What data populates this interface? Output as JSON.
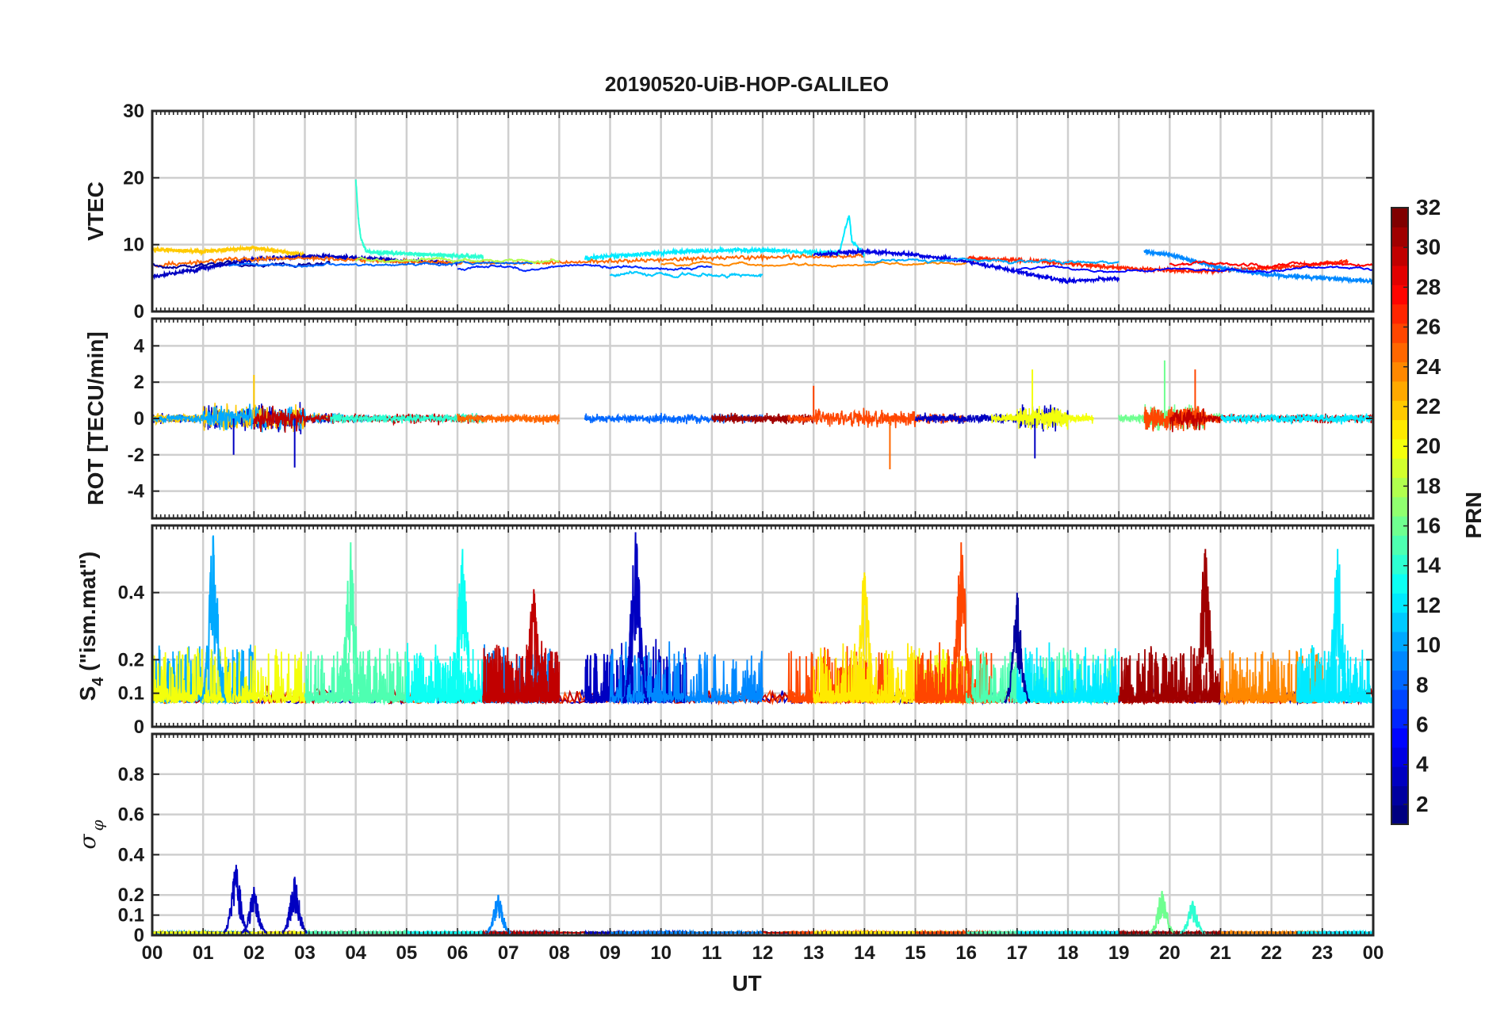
{
  "figure": {
    "title": "20190520-UiB-HOP-GALILEO",
    "xlabel": "UT",
    "x_tick_labels": [
      "00",
      "01",
      "02",
      "03",
      "04",
      "05",
      "06",
      "07",
      "08",
      "09",
      "10",
      "11",
      "12",
      "13",
      "14",
      "15",
      "16",
      "17",
      "18",
      "19",
      "20",
      "21",
      "22",
      "23",
      "00"
    ],
    "colorbar": {
      "label": "PRN",
      "colormap": "jet",
      "range": [
        1,
        32
      ],
      "tick_labels": [
        "2",
        "4",
        "6",
        "8",
        "10",
        "12",
        "14",
        "16",
        "18",
        "20",
        "22",
        "24",
        "26",
        "28",
        "30",
        "32"
      ]
    }
  },
  "chart_data": [
    {
      "type": "line",
      "ylabel": "VTEC",
      "xlim": [
        0,
        24
      ],
      "ylim": [
        0,
        30
      ],
      "y_tick_labels": [
        "0",
        "10",
        "20",
        "30"
      ],
      "y_ticks": [
        0,
        10,
        20,
        30
      ],
      "grid": true,
      "note_series": "one trace per PRN, color-coded by PRN",
      "series": [
        {
          "prn": 22,
          "x": [
            0.0,
            1.0,
            2.0,
            3.0
          ],
          "y": [
            9.3,
            9.0,
            9.5,
            8.5
          ]
        },
        {
          "prn": 3,
          "x": [
            0.0,
            1.0,
            2.0,
            3.2,
            4.5,
            6.0
          ],
          "y": [
            5.2,
            6.5,
            7.8,
            8.3,
            7.8,
            7.2
          ]
        },
        {
          "prn": 25,
          "x": [
            0.0,
            1.5,
            3.0,
            5.0,
            7.0,
            9.0,
            11.0,
            13.0,
            14.0
          ],
          "y": [
            6.8,
            7.8,
            8.0,
            7.4,
            7.2,
            7.5,
            8.0,
            8.2,
            8.3
          ]
        },
        {
          "prn": 14,
          "x": [
            4.0,
            4.05,
            4.1,
            4.2,
            4.5,
            5.5,
            6.5
          ],
          "y": [
            20.0,
            14.0,
            11.0,
            9.0,
            8.8,
            8.5,
            8.2
          ]
        },
        {
          "prn": 12,
          "x": [
            8.5,
            9.5,
            10.5,
            11.5,
            12.5,
            13.5,
            13.7,
            13.75,
            14.0
          ],
          "y": [
            8.0,
            8.5,
            9.0,
            9.2,
            9.0,
            8.8,
            14.5,
            10.5,
            8.5
          ]
        },
        {
          "prn": 4,
          "x": [
            13.0,
            14.0,
            15.0,
            16.0,
            17.0,
            18.0,
            19.0
          ],
          "y": [
            8.5,
            9.0,
            8.5,
            7.5,
            6.0,
            4.5,
            5.0
          ]
        },
        {
          "prn": 27,
          "x": [
            16.0,
            17.5,
            19.0,
            20.5,
            22.0,
            23.5
          ],
          "y": [
            8.0,
            7.5,
            6.5,
            6.0,
            6.5,
            7.5
          ]
        },
        {
          "prn": 9,
          "x": [
            19.5,
            20.0,
            21.0,
            22.0,
            23.0,
            24.0
          ],
          "y": [
            9.0,
            8.5,
            6.5,
            5.5,
            5.0,
            4.5
          ]
        }
      ]
    },
    {
      "type": "line",
      "ylabel": "ROT [TECU/min]",
      "xlim": [
        0,
        24
      ],
      "ylim": [
        -5.5,
        5.5
      ],
      "y_tick_labels": [
        "-4",
        "-2",
        "0",
        "2",
        "4"
      ],
      "y_ticks": [
        -4,
        -2,
        0,
        2,
        4
      ],
      "grid": true,
      "spikes": [
        {
          "prn": 3,
          "x": 1.6,
          "y": -2.0
        },
        {
          "prn": 3,
          "x": 2.8,
          "y": -2.7
        },
        {
          "prn": 22,
          "x": 2.0,
          "y": 2.4
        },
        {
          "prn": 26,
          "x": 13.0,
          "y": 1.8
        },
        {
          "prn": 25,
          "x": 14.5,
          "y": -2.8
        },
        {
          "prn": 20,
          "x": 17.3,
          "y": 2.7
        },
        {
          "prn": 3,
          "x": 17.35,
          "y": -2.2
        },
        {
          "prn": 16,
          "x": 19.9,
          "y": 3.2
        },
        {
          "prn": 26,
          "x": 20.5,
          "y": 2.7
        }
      ]
    },
    {
      "type": "line",
      "ylabel": "S4 (\"ism.mat\")",
      "ylabel_main": "S",
      "ylabel_sub": "4",
      "ylabel_rest": " (\"ism.mat\")",
      "xlim": [
        0,
        24
      ],
      "ylim": [
        0,
        0.6
      ],
      "y_tick_labels": [
        "0",
        "0.1",
        "0.2",
        "0.4"
      ],
      "y_ticks": [
        0,
        0.1,
        0.2,
        0.4
      ],
      "grid": true,
      "peaks": [
        {
          "prn": 10,
          "x": 1.2,
          "y": 0.57
        },
        {
          "prn": 15,
          "x": 3.9,
          "y": 0.55
        },
        {
          "prn": 13,
          "x": 6.1,
          "y": 0.53
        },
        {
          "prn": 30,
          "x": 7.5,
          "y": 0.41
        },
        {
          "prn": 3,
          "x": 9.5,
          "y": 0.58
        },
        {
          "prn": 21,
          "x": 14.0,
          "y": 0.46
        },
        {
          "prn": 26,
          "x": 15.9,
          "y": 0.55
        },
        {
          "prn": 2,
          "x": 17.0,
          "y": 0.4
        },
        {
          "prn": 31,
          "x": 20.7,
          "y": 0.53
        },
        {
          "prn": 12,
          "x": 23.3,
          "y": 0.53
        }
      ]
    },
    {
      "type": "line",
      "ylabel": "σ φ",
      "ylabel_main": "σ",
      "ylabel_sub": "φ",
      "xlim": [
        0,
        24
      ],
      "ylim": [
        0,
        1.0
      ],
      "y_tick_labels": [
        "0",
        "0.1",
        "0.2",
        "0.4",
        "0.6",
        "0.8"
      ],
      "y_ticks": [
        0,
        0.1,
        0.2,
        0.4,
        0.6,
        0.8
      ],
      "grid": true,
      "peaks": [
        {
          "prn": 3,
          "x": 1.65,
          "y": 0.35
        },
        {
          "prn": 3,
          "x": 2.0,
          "y": 0.24
        },
        {
          "prn": 3,
          "x": 2.8,
          "y": 0.29
        },
        {
          "prn": 9,
          "x": 6.8,
          "y": 0.2
        },
        {
          "prn": 16,
          "x": 19.85,
          "y": 0.22
        },
        {
          "prn": 14,
          "x": 20.45,
          "y": 0.17
        }
      ]
    }
  ]
}
